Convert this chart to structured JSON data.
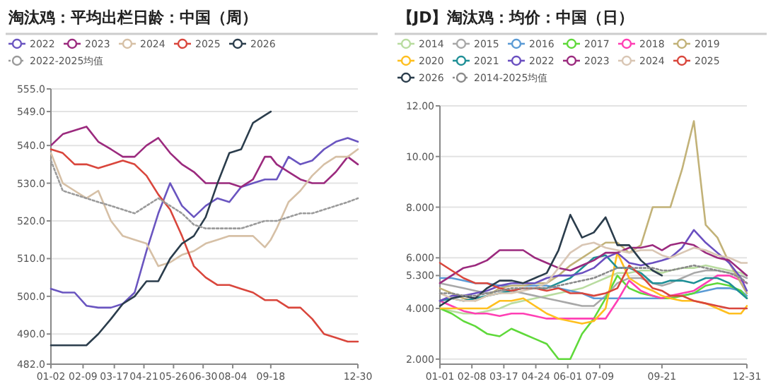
{
  "chart_data": [
    {
      "type": "line",
      "title": "淘汰鸡：平均出栏日龄：中国（周）",
      "legend": "top",
      "grid": "y",
      "x": [
        "--01-02",
        "--01-16",
        "--01-30",
        "--02-13",
        "--02-27",
        "--03-13",
        "--03-27",
        "--04-10",
        "--04-24",
        "--05-08",
        "--05-22",
        "--06-05",
        "--06-19",
        "--07-03",
        "--07-17",
        "--07-31",
        "--08-14",
        "--08-28",
        "--09-11",
        "--09-18",
        "--09-25",
        "--10-09",
        "--10-23",
        "--11-06",
        "--11-20",
        "--12-04",
        "--12-18",
        "--12-30"
      ],
      "xlim": [
        "--01-02",
        "--12-30"
      ],
      "xticks": [
        {
          "value": "--01-02",
          "label": "01-02"
        },
        {
          "value": "--02-09",
          "label": "02-09"
        },
        {
          "value": "--03-17",
          "label": "03-17"
        },
        {
          "value": "--04-21",
          "label": "04-21"
        },
        {
          "value": "--05-26",
          "label": "05-26"
        },
        {
          "value": "--06-30",
          "label": "06-30"
        },
        {
          "value": "--08-04",
          "label": "08-04"
        },
        {
          "value": "--09-18",
          "label": "09-18"
        },
        {
          "value": "--12-30",
          "label": "12-30"
        }
      ],
      "ylim": [
        482,
        555
      ],
      "yticks": [
        {
          "value": 482,
          "label": "482.0"
        },
        {
          "value": 490,
          "label": "490.0"
        },
        {
          "value": 500,
          "label": "500.0"
        },
        {
          "value": 510,
          "label": "510.0"
        },
        {
          "value": 520,
          "label": "520.0"
        },
        {
          "value": 530,
          "label": "530.0"
        },
        {
          "value": 540,
          "label": "540.0"
        },
        {
          "value": 549,
          "label": "549.0"
        },
        {
          "value": 555,
          "label": "555.0"
        }
      ],
      "series": [
        {
          "name": "2022",
          "color": "#6a55c0",
          "values": [
            502,
            501,
            501,
            497.5,
            497,
            497,
            498,
            501,
            512,
            522,
            530,
            524,
            521,
            524,
            526,
            525,
            529,
            530,
            531,
            531,
            531,
            537,
            535,
            536,
            539,
            541,
            542,
            541
          ]
        },
        {
          "name": "2023",
          "color": "#9b2a7e",
          "values": [
            540,
            543,
            544,
            545,
            541,
            539,
            537,
            537,
            540,
            542,
            538,
            535,
            533,
            530,
            530,
            530,
            529,
            531,
            537,
            537,
            535,
            533,
            531,
            530,
            530,
            533,
            537,
            535
          ]
        },
        {
          "name": "2024",
          "color": "#d6c0a6",
          "values": [
            538,
            530,
            528,
            526,
            528,
            520,
            516,
            515,
            514,
            508,
            509,
            511,
            512,
            514,
            515,
            516,
            516,
            516,
            513,
            515,
            518,
            525,
            528,
            532,
            535,
            537,
            537,
            539
          ]
        },
        {
          "name": "2025",
          "color": "#d9463c",
          "values": [
            539,
            538,
            535,
            535,
            534,
            535,
            536,
            535,
            532,
            527,
            523,
            516,
            508,
            505,
            503,
            503,
            502,
            501,
            499,
            499,
            499,
            497,
            497,
            494,
            490,
            489,
            488,
            488
          ]
        },
        {
          "name": "2026",
          "color": "#2b3d4c",
          "values": [
            487,
            487,
            487,
            487,
            490,
            494,
            498,
            500,
            504,
            504,
            510,
            514,
            516,
            521,
            530,
            538,
            539,
            546,
            548,
            549,
            null,
            null,
            null,
            null,
            null,
            null,
            null,
            null
          ]
        },
        {
          "name": "2022-2025均值",
          "color": "#9a9a9a",
          "line_style": "dotted",
          "values": [
            536,
            528,
            527,
            526,
            525,
            524,
            523,
            522,
            524,
            526,
            524,
            522,
            519,
            518,
            518,
            518,
            518,
            519,
            520,
            520,
            520,
            521,
            522,
            522,
            523,
            524,
            525,
            526
          ]
        }
      ]
    },
    {
      "type": "line",
      "title": "【JD】淘汰鸡：均价：中国（日）",
      "legend": "top",
      "grid": "y",
      "x": [
        "--01-01",
        "--01-15",
        "--01-29",
        "--02-12",
        "--02-26",
        "--03-12",
        "--03-26",
        "--04-09",
        "--04-23",
        "--05-07",
        "--05-21",
        "--06-04",
        "--06-18",
        "--07-02",
        "--07-16",
        "--07-30",
        "--08-13",
        "--08-27",
        "--09-10",
        "--09-21",
        "--10-01",
        "--10-15",
        "--10-29",
        "--11-12",
        "--11-26",
        "--12-10",
        "--12-24",
        "--12-31"
      ],
      "xlim": [
        "--01-01",
        "--12-31"
      ],
      "xticks": [
        {
          "value": "--01-01",
          "label": "01-01"
        },
        {
          "value": "--02-08",
          "label": "02-08"
        },
        {
          "value": "--03-17",
          "label": "03-17"
        },
        {
          "value": "--04-24",
          "label": "04-24"
        },
        {
          "value": "--06-01",
          "label": "06-01"
        },
        {
          "value": "--07-09",
          "label": "07-09"
        },
        {
          "value": "--09-21",
          "label": "09-21"
        },
        {
          "value": "--12-31",
          "label": "12-31"
        }
      ],
      "ylim": [
        1.8,
        12
      ],
      "yticks": [
        {
          "value": 2,
          "label": "2.000"
        },
        {
          "value": 4,
          "label": "4.000"
        },
        {
          "value": 5.3,
          "label": "5.300"
        },
        {
          "value": 6,
          "label": "6.000"
        },
        {
          "value": 8,
          "label": "8.000"
        },
        {
          "value": 10,
          "label": "10.00"
        },
        {
          "value": 12,
          "label": "12.00"
        }
      ],
      "series": [
        {
          "name": "2014",
          "color": "#b9dca0",
          "values": [
            4.0,
            3.9,
            3.8,
            3.8,
            3.9,
            4.0,
            4.2,
            4.3,
            4.4,
            4.5,
            4.6,
            4.7,
            4.8,
            5.0,
            5.2,
            5.4,
            5.4,
            5.5,
            5.5,
            5.4,
            5.5,
            5.6,
            5.6,
            5.7,
            5.6,
            5.5,
            5.4,
            5.3
          ]
        },
        {
          "name": "2015",
          "color": "#a8a8a8",
          "values": [
            5.0,
            4.9,
            4.8,
            4.7,
            4.6,
            4.7,
            4.7,
            4.6,
            4.5,
            4.4,
            4.3,
            4.2,
            4.1,
            4.1,
            4.5,
            5.0,
            5.2,
            5.2,
            5.0,
            4.9,
            5.0,
            5.2,
            5.4,
            5.5,
            5.5,
            5.4,
            5.3,
            5.2
          ]
        },
        {
          "name": "2016",
          "color": "#5b9bd5",
          "values": [
            5.2,
            5.2,
            5.1,
            5.0,
            5.0,
            4.9,
            4.9,
            4.9,
            4.9,
            4.9,
            4.8,
            4.7,
            4.6,
            4.4,
            4.4,
            4.4,
            4.4,
            4.4,
            4.4,
            4.4,
            4.5,
            4.5,
            4.6,
            4.7,
            4.8,
            4.8,
            4.7,
            4.5
          ]
        },
        {
          "name": "2017",
          "color": "#5fd93a",
          "values": [
            4.0,
            3.8,
            3.5,
            3.3,
            3.0,
            2.9,
            3.2,
            3.0,
            2.8,
            2.6,
            2.0,
            2.0,
            3.0,
            3.6,
            4.4,
            5.3,
            4.8,
            4.6,
            4.5,
            4.4,
            4.4,
            4.5,
            4.6,
            4.9,
            5.0,
            4.9,
            4.7,
            4.4
          ]
        },
        {
          "name": "2018",
          "color": "#ff3fb4",
          "values": [
            4.3,
            4.1,
            3.9,
            3.8,
            3.8,
            3.7,
            3.8,
            3.8,
            3.7,
            3.6,
            3.6,
            3.6,
            3.6,
            3.6,
            3.6,
            4.3,
            5.1,
            4.7,
            4.5,
            4.4,
            4.5,
            4.6,
            4.7,
            5.0,
            5.3,
            5.3,
            5.1,
            5.0
          ]
        },
        {
          "name": "2019",
          "color": "#c2b278",
          "values": [
            4.8,
            4.6,
            4.4,
            4.3,
            4.5,
            4.8,
            4.9,
            4.9,
            5.0,
            5.0,
            5.3,
            5.7,
            6.0,
            6.3,
            6.6,
            6.6,
            6.2,
            6.5,
            8.0,
            8.0,
            8.0,
            9.5,
            11.4,
            7.3,
            6.8,
            5.8,
            5.0,
            4.6
          ]
        },
        {
          "name": "2020",
          "color": "#ffbf1f",
          "values": [
            4.0,
            4.0,
            4.0,
            4.0,
            4.0,
            4.3,
            4.3,
            4.4,
            4.1,
            3.8,
            3.6,
            3.5,
            3.4,
            3.5,
            4.0,
            6.2,
            5.2,
            4.9,
            4.7,
            4.5,
            4.4,
            4.3,
            4.3,
            4.2,
            4.0,
            3.8,
            3.8,
            4.1
          ]
        },
        {
          "name": "2021",
          "color": "#1f8f96",
          "values": [
            4.3,
            4.4,
            4.3,
            4.4,
            4.5,
            4.6,
            4.7,
            4.8,
            4.8,
            4.8,
            5.0,
            5.2,
            5.6,
            6.0,
            6.1,
            5.6,
            5.6,
            5.4,
            5.0,
            5.0,
            5.1,
            5.1,
            5.0,
            5.2,
            5.2,
            5.0,
            4.6,
            4.4
          ]
        },
        {
          "name": "2022",
          "color": "#6a4fc0",
          "values": [
            4.3,
            4.5,
            4.5,
            4.6,
            4.7,
            4.9,
            5.0,
            5.0,
            5.0,
            5.2,
            5.3,
            5.3,
            5.4,
            5.6,
            6.0,
            6.2,
            5.8,
            5.7,
            5.8,
            5.9,
            6.0,
            6.4,
            7.1,
            6.6,
            6.2,
            5.8,
            5.2,
            4.7
          ]
        },
        {
          "name": "2023",
          "color": "#9b2a7e",
          "values": [
            5.0,
            5.3,
            5.6,
            5.7,
            5.9,
            6.3,
            6.3,
            6.3,
            6.0,
            5.8,
            5.6,
            5.5,
            5.7,
            5.9,
            6.2,
            6.2,
            6.4,
            6.4,
            6.5,
            6.3,
            6.5,
            6.6,
            6.5,
            6.2,
            6.0,
            5.9,
            5.5,
            5.3
          ]
        },
        {
          "name": "2024",
          "color": "#d9c6b4",
          "values": [
            4.6,
            4.4,
            4.3,
            4.3,
            4.5,
            4.6,
            4.6,
            4.7,
            4.8,
            5.0,
            5.6,
            6.2,
            6.5,
            6.6,
            6.4,
            6.3,
            6.2,
            6.3,
            6.3,
            6.1,
            6.0,
            6.2,
            6.4,
            6.3,
            6.1,
            6.0,
            5.8,
            5.8
          ]
        },
        {
          "name": "2025",
          "color": "#d9463c",
          "values": [
            5.8,
            5.5,
            5.2,
            5.0,
            5.0,
            4.8,
            4.7,
            4.8,
            4.8,
            4.7,
            4.8,
            4.6,
            4.6,
            4.5,
            4.6,
            4.8,
            5.7,
            5.3,
            4.8,
            4.7,
            4.5,
            4.5,
            4.3,
            4.2,
            4.1,
            4.0,
            4.0,
            4.0
          ]
        },
        {
          "name": "2026",
          "color": "#2b3d4c",
          "values": [
            4.1,
            4.4,
            4.5,
            4.4,
            4.8,
            5.1,
            5.1,
            5.0,
            5.2,
            5.4,
            6.3,
            7.7,
            6.8,
            7.0,
            7.6,
            6.5,
            6.5,
            5.9,
            5.5,
            5.3,
            null,
            null,
            null,
            null,
            null,
            null,
            null,
            null
          ]
        },
        {
          "name": "2014-2025均值",
          "color": "#8a8a8a",
          "line_style": "dotted",
          "values": [
            4.6,
            4.6,
            4.5,
            4.5,
            4.6,
            4.7,
            4.8,
            4.8,
            4.8,
            4.8,
            4.9,
            5.0,
            5.1,
            5.2,
            5.4,
            5.6,
            5.6,
            5.6,
            5.6,
            5.5,
            5.5,
            5.6,
            5.7,
            5.6,
            5.5,
            5.4,
            5.2,
            5.0
          ]
        }
      ]
    }
  ]
}
